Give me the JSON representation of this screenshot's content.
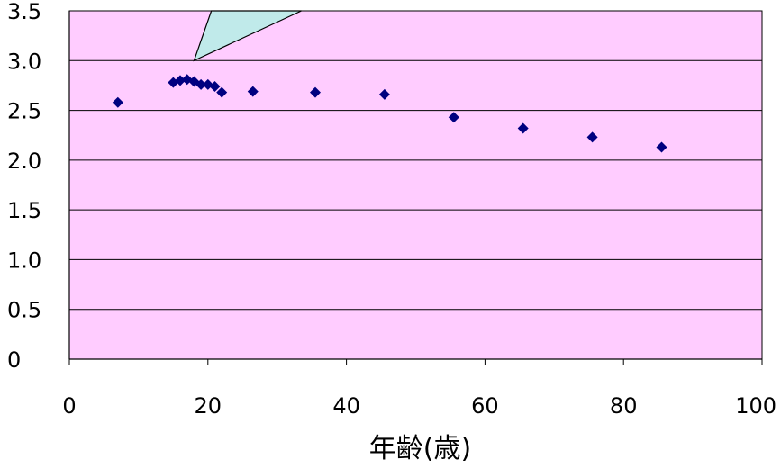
{
  "chart_data": {
    "type": "scatter",
    "xlabel": "年齢(歳)",
    "ylabel": "",
    "xlim": [
      0,
      100
    ],
    "ylim": [
      0,
      3.5
    ],
    "x_ticks": [
      "0",
      "20",
      "40",
      "60",
      "80",
      "100"
    ],
    "y_ticks": [
      "0",
      "0.5",
      "1.0",
      "1.5",
      "2.0",
      "2.5",
      "3.0",
      "3.5"
    ],
    "grid": "horizontal",
    "plot_background": "#ffccff",
    "marker_color": "#000080",
    "callout_color": "#c0eaea",
    "series": [
      {
        "points": [
          {
            "x": 7,
            "y": 2.58
          },
          {
            "x": 15,
            "y": 2.78
          },
          {
            "x": 16,
            "y": 2.8
          },
          {
            "x": 17,
            "y": 2.81
          },
          {
            "x": 18,
            "y": 2.79
          },
          {
            "x": 19,
            "y": 2.76
          },
          {
            "x": 20,
            "y": 2.76
          },
          {
            "x": 21,
            "y": 2.74
          },
          {
            "x": 22,
            "y": 2.68
          },
          {
            "x": 26.5,
            "y": 2.69
          },
          {
            "x": 35.5,
            "y": 2.68
          },
          {
            "x": 45.5,
            "y": 2.66
          },
          {
            "x": 55.5,
            "y": 2.43
          },
          {
            "x": 65.5,
            "y": 2.32
          },
          {
            "x": 75.5,
            "y": 2.23
          },
          {
            "x": 85.5,
            "y": 2.13
          }
        ]
      }
    ]
  }
}
